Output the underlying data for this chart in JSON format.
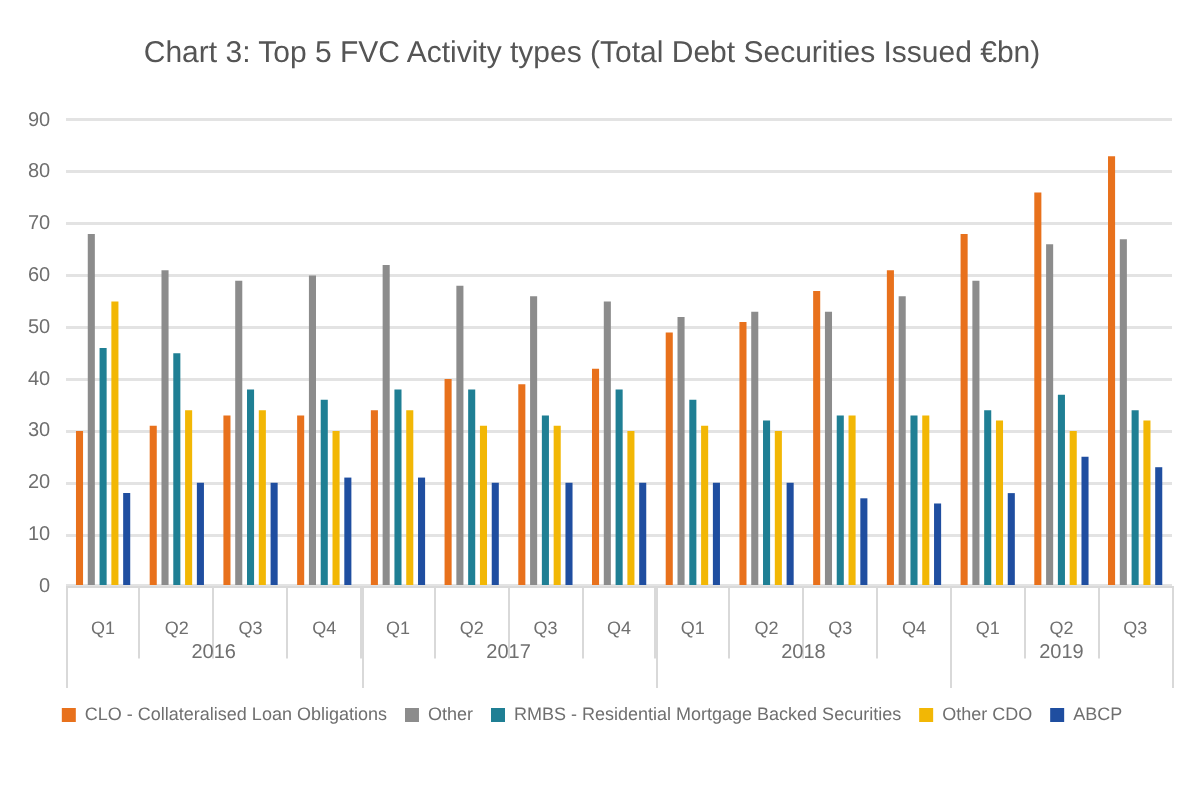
{
  "chart_data": {
    "type": "bar",
    "title": "Chart 3: Top 5 FVC Activity types (Total Debt Securities Issued €bn)",
    "categories": [
      "Q1",
      "Q2",
      "Q3",
      "Q4",
      "Q1",
      "Q2",
      "Q3",
      "Q4",
      "Q1",
      "Q2",
      "Q3",
      "Q4",
      "Q1",
      "Q2",
      "Q3"
    ],
    "annotations": [
      "2016",
      "2017",
      "2018",
      "2019"
    ],
    "series": [
      {
        "name": "CLO - Collateralised Loan Obligations",
        "color": "#e8711c",
        "values": [
          30,
          31,
          33,
          33,
          34,
          40,
          39,
          42,
          49,
          51,
          57,
          61,
          68,
          76,
          83
        ]
      },
      {
        "name": "Other",
        "color": "#8c8c8c",
        "values": [
          68,
          61,
          59,
          60,
          62,
          58,
          56,
          55,
          52,
          53,
          53,
          56,
          59,
          66,
          67
        ]
      },
      {
        "name": "RMBS - Residential Mortgage Backed Securities",
        "color": "#1f7f94",
        "values": [
          46,
          45,
          38,
          36,
          38,
          38,
          33,
          38,
          36,
          32,
          33,
          33,
          34,
          37,
          34
        ]
      },
      {
        "name": "Other CDO",
        "color": "#f2b705",
        "values": [
          55,
          34,
          34,
          30,
          34,
          31,
          31,
          30,
          31,
          30,
          33,
          33,
          32,
          30,
          32
        ]
      },
      {
        "name": "ABCP",
        "color": "#1f4ea0",
        "values": [
          18,
          20,
          20,
          21,
          21,
          20,
          20,
          20,
          20,
          20,
          17,
          16,
          18,
          25,
          23
        ]
      }
    ],
    "ylim": [
      0,
      90
    ],
    "yticks": [
      0,
      10,
      20,
      30,
      40,
      50,
      60,
      70,
      80,
      90
    ],
    "grid": "y",
    "legend": "bottom"
  }
}
